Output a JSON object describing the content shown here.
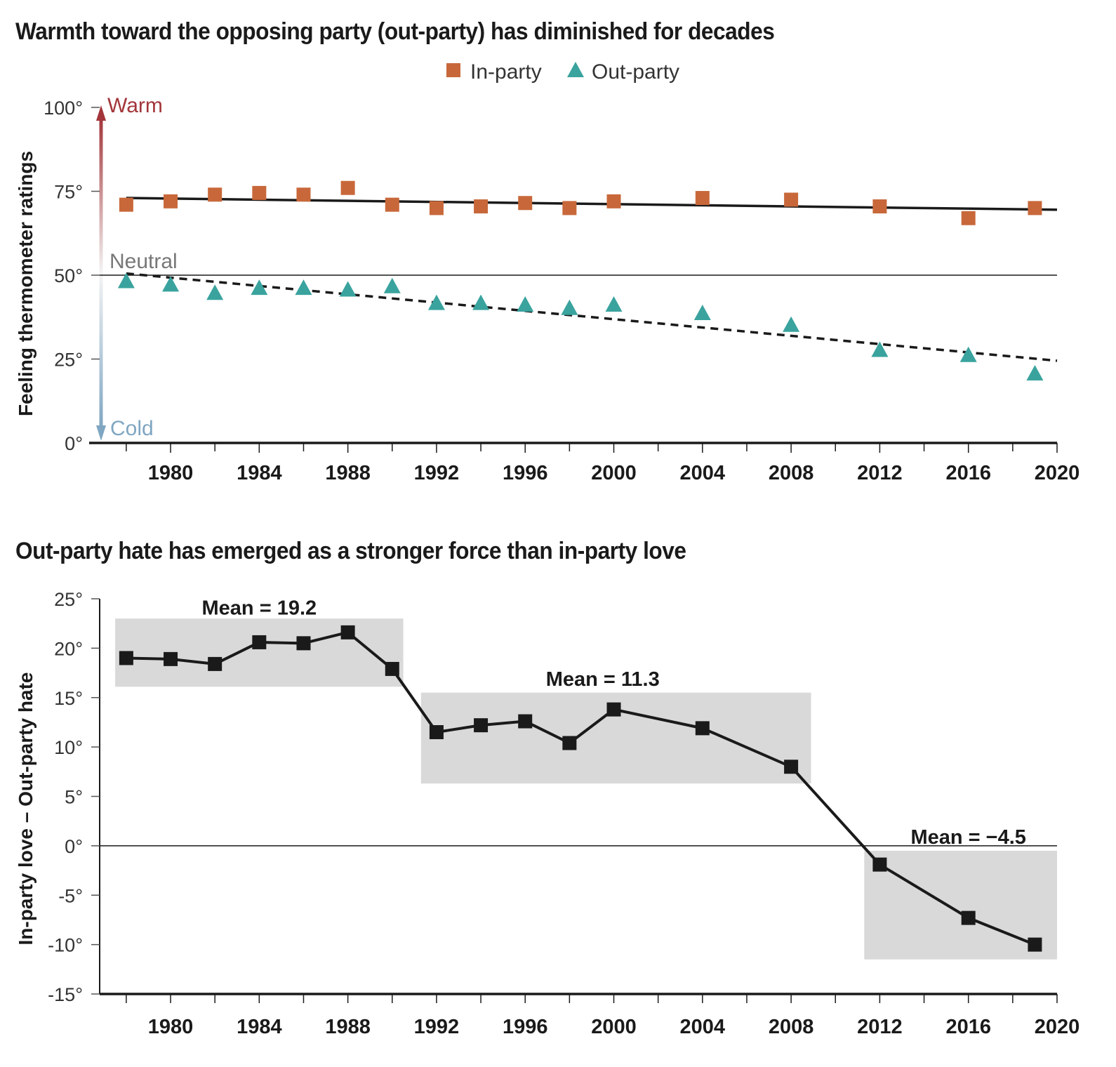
{
  "titles": {
    "chart1": "Warmth toward the opposing party (out-party) has diminished for decades",
    "chart2": "Out-party hate has emerged as a stronger force than in-party love"
  },
  "colors": {
    "in_party": "#c8683a",
    "out_party": "#3aa39e",
    "warm": "#a3363a",
    "cold": "#7fa6c2",
    "neutral": "#777777",
    "band": "#d9d9d9",
    "line": "#1a1a1a"
  },
  "chart_data": [
    {
      "type": "scatter",
      "title": "Warmth toward the opposing party (out-party) has diminished for decades",
      "ylabel": "Feeling thermometer ratings",
      "yticks": [
        "100°",
        "75°",
        "50°",
        "25°",
        "0°"
      ],
      "ytick_values": [
        100,
        75,
        50,
        25,
        0
      ],
      "xticks": [
        "1980",
        "1984",
        "1988",
        "1992",
        "1996",
        "2000",
        "2004",
        "2008",
        "2012",
        "2016",
        "2020"
      ],
      "xtick_values": [
        1980,
        1984,
        1988,
        1992,
        1996,
        2000,
        2004,
        2008,
        2012,
        2016,
        2020
      ],
      "xlim": [
        1976.8,
        2020
      ],
      "ylim": [
        0,
        100
      ],
      "annotations": {
        "warm": "Warm",
        "neutral": "Neutral",
        "cold": "Cold"
      },
      "legend": {
        "placement": "top-center",
        "in_party": "In-party",
        "out_party": "Out-party"
      },
      "series": [
        {
          "name": "In-party",
          "marker": "square",
          "x": [
            1978,
            1980,
            1982,
            1984,
            1986,
            1988,
            1990,
            1992,
            1994,
            1996,
            1998,
            2000,
            2004,
            2008,
            2012,
            2016,
            2019
          ],
          "y": [
            71,
            72,
            74,
            74.5,
            74,
            76,
            71,
            70,
            70.5,
            71.5,
            70,
            72,
            73,
            72.5,
            70.5,
            67,
            70
          ]
        },
        {
          "name": "Out-party",
          "marker": "triangle",
          "x": [
            1978,
            1980,
            1982,
            1984,
            1986,
            1988,
            1990,
            1992,
            1994,
            1996,
            1998,
            2000,
            2004,
            2008,
            2012,
            2016,
            2019
          ],
          "y": [
            48,
            47,
            44.5,
            46,
            46,
            45.5,
            46.5,
            41.5,
            41.5,
            41,
            40,
            41,
            38.5,
            35,
            27.5,
            26,
            20.5
          ]
        }
      ],
      "trendlines": [
        {
          "series": "In-party",
          "style": "solid",
          "x": [
            1978,
            2020
          ],
          "y": [
            73,
            69.5
          ]
        },
        {
          "series": "Out-party",
          "style": "dashed",
          "x": [
            1978,
            2020
          ],
          "y": [
            50.5,
            24.5
          ]
        }
      ]
    },
    {
      "type": "line",
      "title": "Out-party hate has emerged as a stronger force than in-party love",
      "ylabel": "In-party love – Out-party hate",
      "yticks": [
        "25°",
        "20°",
        "15°",
        "10°",
        "5°",
        "0°",
        "-5°",
        "-10°",
        "-15°"
      ],
      "ytick_values": [
        25,
        20,
        15,
        10,
        5,
        0,
        -5,
        -10,
        -15
      ],
      "xticks": [
        "1980",
        "1984",
        "1988",
        "1992",
        "1996",
        "2000",
        "2004",
        "2008",
        "2012",
        "2016",
        "2020"
      ],
      "xtick_values": [
        1980,
        1984,
        1988,
        1992,
        1996,
        2000,
        2004,
        2008,
        2012,
        2016,
        2020
      ],
      "xlim": [
        1976.8,
        2020
      ],
      "ylim": [
        -15,
        25
      ],
      "x": [
        1978,
        1980,
        1982,
        1984,
        1986,
        1988,
        1990,
        1992,
        1994,
        1996,
        1998,
        2000,
        2004,
        2008,
        2012,
        2016,
        2019
      ],
      "y": [
        19,
        18.9,
        18.4,
        20.6,
        20.5,
        21.6,
        17.9,
        11.5,
        12.2,
        12.6,
        10.4,
        13.8,
        11.9,
        8,
        -1.9,
        -7.3,
        -10
      ],
      "bands": [
        {
          "label": "Mean = 19.2",
          "x0": 1977.5,
          "x1": 1990.5,
          "y0": 16.1,
          "y1": 23,
          "label_x": 1984,
          "label_y": 24.1
        },
        {
          "label": "Mean = 11.3",
          "x0": 1991.3,
          "x1": 2008.9,
          "y0": 6.3,
          "y1": 15.5,
          "label_x": 1999.5,
          "label_y": 16.9
        },
        {
          "label": "Mean = −4.5",
          "x0": 2011.3,
          "x1": 2020,
          "y0": -11.5,
          "y1": -0.5,
          "label_x": 2016,
          "label_y": 0.9
        }
      ]
    }
  ]
}
